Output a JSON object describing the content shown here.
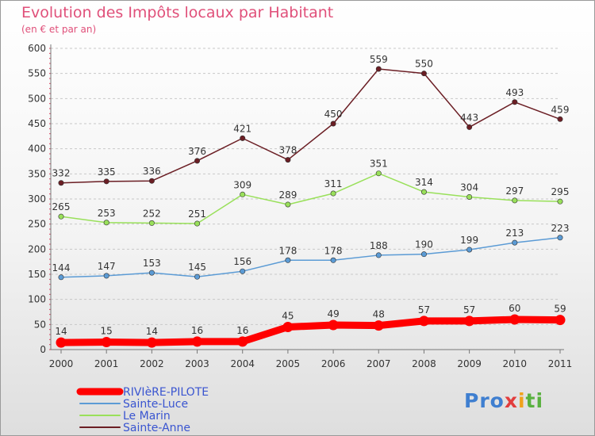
{
  "title": "Evolution des Impôts locaux par Habitant",
  "subtitle": "(en € et par an)",
  "logo": "Proxiti",
  "chart_data": {
    "type": "line",
    "title": "Evolution des Impôts locaux par Habitant",
    "subtitle": "(en € et par an)",
    "x": [
      "2000",
      "2001",
      "2002",
      "2003",
      "2004",
      "2005",
      "2006",
      "2007",
      "2008",
      "2009",
      "2010",
      "2011"
    ],
    "yticks": [
      0,
      50,
      100,
      150,
      200,
      250,
      300,
      350,
      400,
      450,
      500,
      550,
      600
    ],
    "ylim": [
      0,
      600
    ],
    "grid": "horizontal dashed",
    "legend_position": "bottom-left",
    "series": [
      {
        "name": "RIVIèRE-PILOTE",
        "color": "#ff0000",
        "values": [
          14,
          15,
          14,
          16,
          16,
          45,
          49,
          48,
          57,
          57,
          60,
          59
        ]
      },
      {
        "name": "Sainte-Luce",
        "color": "#5b9bd5",
        "values": [
          144,
          147,
          153,
          145,
          156,
          178,
          178,
          188,
          190,
          199,
          213,
          223
        ]
      },
      {
        "name": "Le Marin",
        "color": "#99e05a",
        "values": [
          265,
          253,
          252,
          251,
          309,
          289,
          311,
          351,
          314,
          304,
          297,
          295
        ]
      },
      {
        "name": "Sainte-Anne",
        "color": "#6b1e24",
        "values": [
          332,
          335,
          336,
          376,
          421,
          378,
          450,
          559,
          550,
          443,
          493,
          459
        ]
      }
    ]
  }
}
